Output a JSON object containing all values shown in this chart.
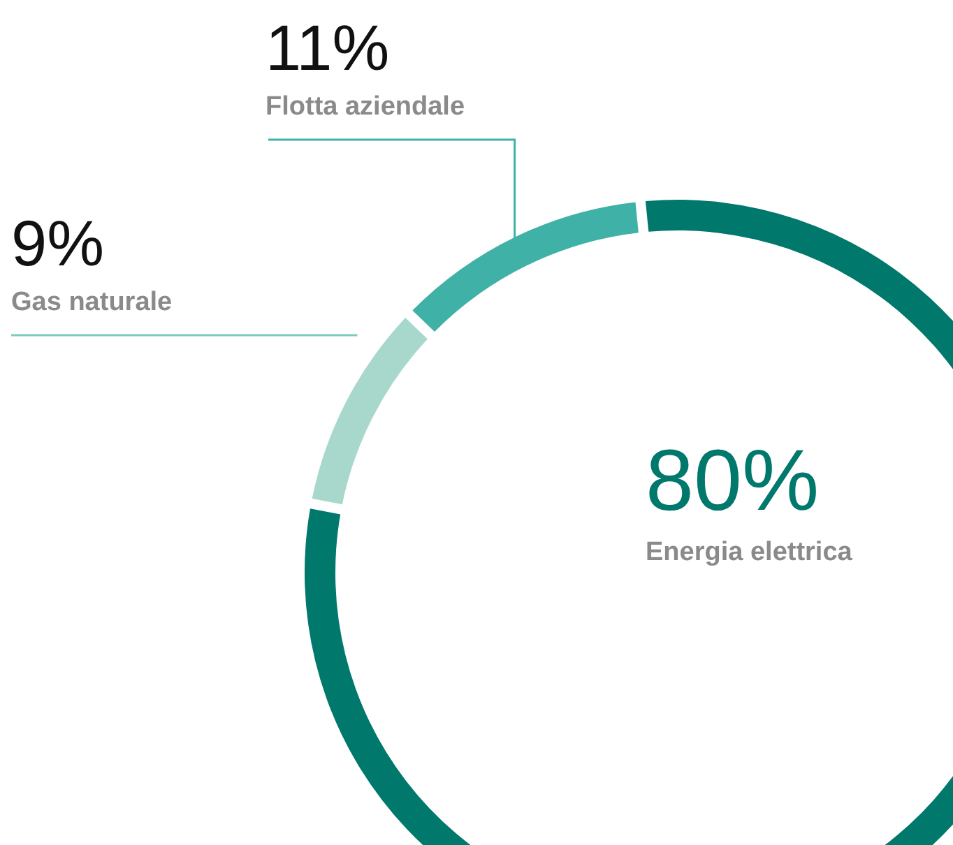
{
  "chart_data": {
    "type": "donut",
    "categories": [
      "Energia elettrica",
      "Gas naturale",
      "Flotta aziendale"
    ],
    "values": [
      80,
      9,
      11
    ],
    "colors": [
      "#00786c",
      "#a8d8cc",
      "#3fb1a6"
    ],
    "value_labels": [
      "80%",
      "9%",
      "11%"
    ]
  }
}
